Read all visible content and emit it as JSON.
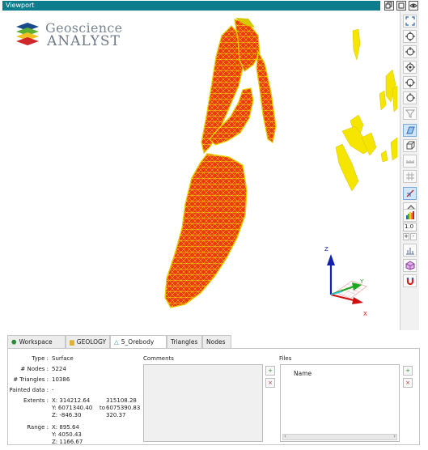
{
  "window": {
    "title": "Viewport"
  },
  "logo": {
    "line1": "Geoscience",
    "line2": "ANALYST"
  },
  "axes": {
    "z": "Z",
    "y": "Y",
    "x": "X"
  },
  "toolbar": {
    "scale_value": "1.0",
    "plus": "+",
    "minus": "-"
  },
  "tabs": [
    {
      "label": "Workspace",
      "icon": "workspace-icon"
    },
    {
      "label": "GEOLOGY",
      "icon": "folder-icon"
    },
    {
      "label": "5_Orebody",
      "icon": "surface-icon",
      "active": true
    },
    {
      "label": "Triangles"
    },
    {
      "label": "Nodes"
    }
  ],
  "properties": {
    "type_label": "Type :",
    "type_value": "Surface",
    "nodes_label": "# Nodes :",
    "nodes_value": "5224",
    "triangles_label": "# Triangles :",
    "triangles_value": "10386",
    "painted_label": "Painted data :",
    "painted_value": "-",
    "extents_label": "Extents :",
    "extents_x_min": "X: 314212.64",
    "extents_x_max": "315108.28",
    "extents_y_min": "Y: 6071340.40",
    "extents_to": "to",
    "extents_y_max": "6075390.83",
    "extents_z_min": "Z: -846.30",
    "extents_z_max": "320.37",
    "range_label": "Range :",
    "range_x": "X: 895.64",
    "range_y": "Y: 4050.43",
    "range_z": "Z: 1166.67"
  },
  "comments": {
    "title": "Comments"
  },
  "files": {
    "title": "Files",
    "column_name": "Name"
  },
  "colors": {
    "accent": "#0d7c8d",
    "surface_fill": "#ee3a14",
    "mesh": "#ffee00",
    "outlier": "#f5e500"
  }
}
